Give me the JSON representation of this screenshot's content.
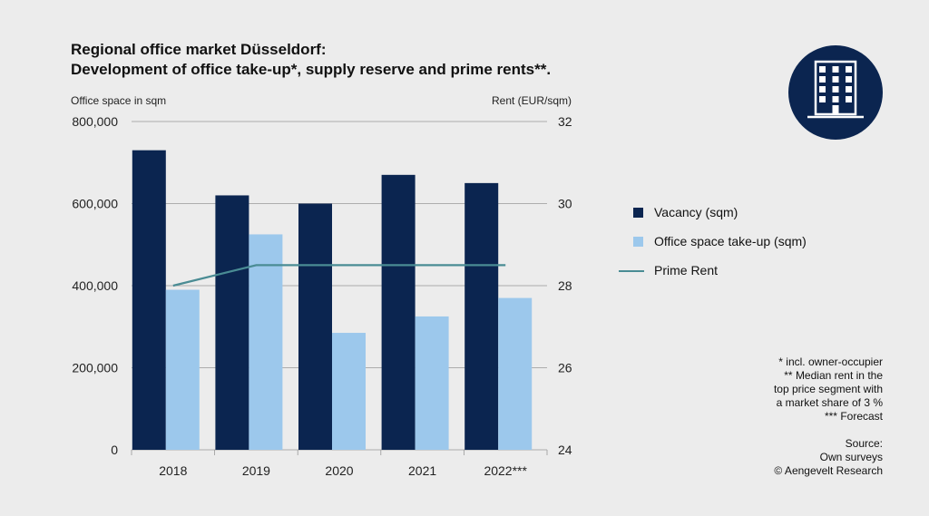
{
  "title_line1": "Regional office market Düsseldorf:",
  "title_line2": "Development of office take-up*, supply reserve and prime rents**.",
  "left_axis_label": "Office space in sqm",
  "right_axis_label": "Rent (EUR/sqm)",
  "legend": {
    "vacancy": "Vacancy (sqm)",
    "takeup": "Office space take-up (sqm)",
    "rent": "Prime Rent"
  },
  "notes": [
    "* incl. owner-occupier",
    "** Median rent in the",
    "top price segment with",
    "a market share of 3 %",
    "*** Forecast"
  ],
  "source": [
    "Source:",
    "Own surveys",
    "© Aengevelt Research"
  ],
  "logo_icon": "office-building-icon",
  "colors": {
    "background": "#ececec",
    "vacancy": "#0b2550",
    "takeup": "#9cc8ec",
    "rent": "#4a8c94",
    "grid": "#999999",
    "logo_bg": "#0b2550"
  },
  "chart_data": {
    "type": "bar",
    "categories": [
      "2018",
      "2019",
      "2020",
      "2021",
      "2022***"
    ],
    "series": [
      {
        "name": "Vacancy (sqm)",
        "type": "bar",
        "axis": "left",
        "values": [
          730000,
          620000,
          600000,
          670000,
          650000
        ]
      },
      {
        "name": "Office space take-up (sqm)",
        "type": "bar",
        "axis": "left",
        "values": [
          390000,
          525000,
          285000,
          325000,
          370000
        ]
      },
      {
        "name": "Prime Rent",
        "type": "line",
        "axis": "right",
        "values": [
          28,
          28.5,
          28.5,
          28.5,
          28.5
        ]
      }
    ],
    "y_left": {
      "label": "Office space in sqm",
      "ticks": [
        "800,000",
        "600,000",
        "400,000",
        "200,000",
        "0"
      ],
      "ylim": [
        0,
        800000
      ]
    },
    "y_right": {
      "label": "Rent (EUR/sqm)",
      "ticks": [
        "32",
        "30",
        "28",
        "26",
        "24"
      ],
      "ylim": [
        24,
        32
      ]
    },
    "grid": true,
    "legend_position": "right"
  }
}
